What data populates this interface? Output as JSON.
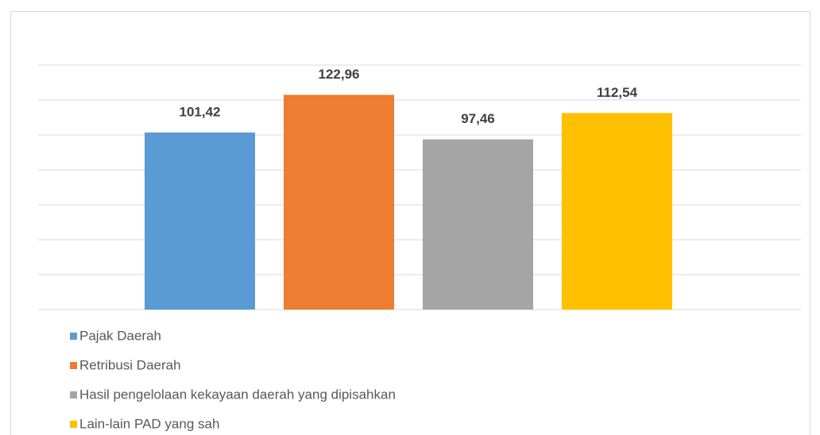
{
  "chart_data": {
    "type": "bar",
    "categories": [
      null
    ],
    "series": [
      {
        "name": "Pajak Daerah",
        "color": "#5b9bd5",
        "values": [
          101.42
        ],
        "value_labels": [
          "101,42"
        ]
      },
      {
        "name": "Retribusi Daerah",
        "color": "#ed7d31",
        "values": [
          122.96
        ],
        "value_labels": [
          "122,96"
        ]
      },
      {
        "name": "Hasil pengelolaan kekayaan daerah yang dipisahkan",
        "color": "#a5a5a5",
        "values": [
          97.46
        ],
        "value_labels": [
          "97,46"
        ]
      },
      {
        "name": "Lain-lain PAD yang sah",
        "color": "#ffc000",
        "values": [
          112.54
        ],
        "value_labels": [
          "112,54"
        ]
      }
    ],
    "ylim": [
      0,
      140
    ],
    "yticks": [
      0,
      20,
      40,
      60,
      80,
      100,
      120,
      140
    ],
    "grid": true,
    "legend": "bottom-left"
  }
}
